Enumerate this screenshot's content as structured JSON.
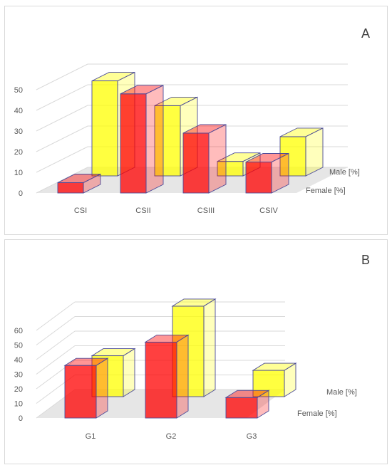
{
  "chart_data": [
    {
      "type": "bar",
      "panel_label": "A",
      "categories": [
        "CSI",
        "CSII",
        "CSIII",
        "CSIV"
      ],
      "series": [
        {
          "name": "Female [%]",
          "values": [
            5,
            48,
            29,
            15
          ],
          "color": "#ff0000"
        },
        {
          "name": "Male [%]",
          "values": [
            46,
            34,
            7,
            19
          ],
          "color": "#ffff00"
        }
      ],
      "yticks": [
        0,
        10,
        20,
        30,
        40,
        50
      ],
      "ylim": [
        0,
        50
      ],
      "grid": true
    },
    {
      "type": "bar",
      "panel_label": "B",
      "categories": [
        "G1",
        "G2",
        "G3"
      ],
      "series": [
        {
          "name": "Female [%]",
          "values": [
            36,
            52,
            14
          ],
          "color": "#ff0000"
        },
        {
          "name": "Male [%]",
          "values": [
            28,
            62,
            18
          ],
          "color": "#ffff00"
        }
      ],
      "yticks": [
        0,
        10,
        20,
        30,
        40,
        50,
        60
      ],
      "ylim": [
        0,
        60
      ],
      "grid": true
    }
  ]
}
